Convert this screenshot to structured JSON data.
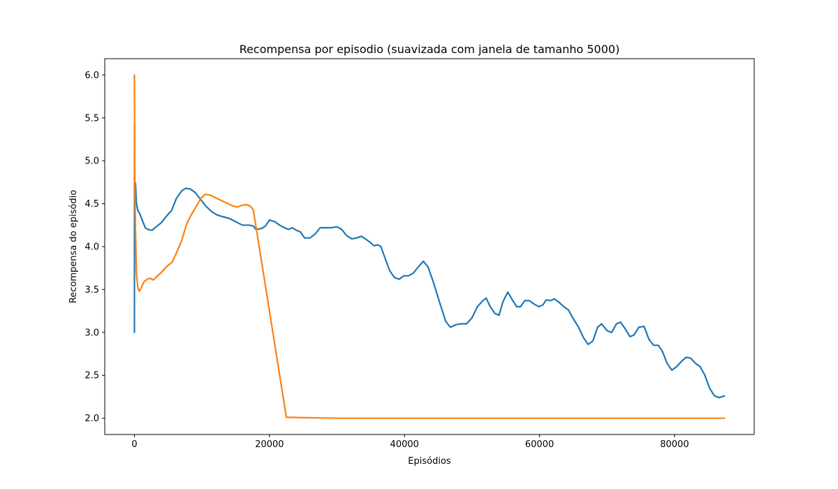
{
  "chart_data": {
    "type": "line",
    "title": "Recompensa por episodio (suavizada com janela de tamanho 5000)",
    "xlabel": "Episódios",
    "ylabel": "Recompensa do episódio",
    "xlim": [
      -4400,
      91800
    ],
    "ylim": [
      1.81,
      6.19
    ],
    "xticks": [
      0,
      20000,
      40000,
      60000,
      80000
    ],
    "yticks": [
      2.0,
      2.5,
      3.0,
      3.5,
      4.0,
      4.5,
      5.0,
      5.5,
      6.0
    ],
    "xtick_labels": [
      "0",
      "20000",
      "40000",
      "60000",
      "80000"
    ],
    "ytick_labels": [
      "2.0",
      "2.5",
      "3.0",
      "3.5",
      "4.0",
      "4.5",
      "5.0",
      "5.5",
      "6.0"
    ],
    "grid": false,
    "legend": "none",
    "series": [
      {
        "color": "#1f77b4",
        "points": [
          [
            0,
            3.0
          ],
          [
            20,
            5.42
          ],
          [
            60,
            4.4
          ],
          [
            150,
            4.74
          ],
          [
            300,
            4.5
          ],
          [
            500,
            4.42
          ],
          [
            800,
            4.38
          ],
          [
            1200,
            4.3
          ],
          [
            1600,
            4.22
          ],
          [
            2000,
            4.2
          ],
          [
            2600,
            4.19
          ],
          [
            3200,
            4.23
          ],
          [
            4000,
            4.28
          ],
          [
            4800,
            4.36
          ],
          [
            5500,
            4.42
          ],
          [
            6200,
            4.56
          ],
          [
            7000,
            4.65
          ],
          [
            7600,
            4.68
          ],
          [
            8300,
            4.67
          ],
          [
            9000,
            4.63
          ],
          [
            9800,
            4.55
          ],
          [
            10600,
            4.47
          ],
          [
            11400,
            4.41
          ],
          [
            12200,
            4.37
          ],
          [
            13000,
            4.35
          ],
          [
            14000,
            4.33
          ],
          [
            15000,
            4.29
          ],
          [
            16000,
            4.25
          ],
          [
            17000,
            4.25
          ],
          [
            17600,
            4.24
          ],
          [
            18000,
            4.2
          ],
          [
            18800,
            4.21
          ],
          [
            19400,
            4.24
          ],
          [
            20000,
            4.31
          ],
          [
            20800,
            4.29
          ],
          [
            21500,
            4.25
          ],
          [
            22200,
            4.22
          ],
          [
            22800,
            4.2
          ],
          [
            23400,
            4.22
          ],
          [
            24000,
            4.19
          ],
          [
            24600,
            4.17
          ],
          [
            25200,
            4.1
          ],
          [
            26000,
            4.1
          ],
          [
            26800,
            4.15
          ],
          [
            27500,
            4.22
          ],
          [
            28300,
            4.22
          ],
          [
            29100,
            4.22
          ],
          [
            30000,
            4.23
          ],
          [
            30700,
            4.2
          ],
          [
            31400,
            4.13
          ],
          [
            32200,
            4.09
          ],
          [
            32900,
            4.1
          ],
          [
            33600,
            4.12
          ],
          [
            34200,
            4.09
          ],
          [
            34900,
            4.05
          ],
          [
            35500,
            4.01
          ],
          [
            36000,
            4.02
          ],
          [
            36500,
            4.0
          ],
          [
            37100,
            3.87
          ],
          [
            37800,
            3.72
          ],
          [
            38500,
            3.64
          ],
          [
            39200,
            3.62
          ],
          [
            39900,
            3.66
          ],
          [
            40600,
            3.66
          ],
          [
            41300,
            3.69
          ],
          [
            42000,
            3.76
          ],
          [
            42800,
            3.83
          ],
          [
            43500,
            3.76
          ],
          [
            44300,
            3.58
          ],
          [
            45200,
            3.35
          ],
          [
            46100,
            3.13
          ],
          [
            46800,
            3.06
          ],
          [
            47600,
            3.09
          ],
          [
            48400,
            3.1
          ],
          [
            49200,
            3.1
          ],
          [
            50000,
            3.17
          ],
          [
            50800,
            3.3
          ],
          [
            51600,
            3.37
          ],
          [
            52100,
            3.4
          ],
          [
            52700,
            3.3
          ],
          [
            53400,
            3.22
          ],
          [
            54000,
            3.2
          ],
          [
            54600,
            3.36
          ],
          [
            55300,
            3.47
          ],
          [
            55900,
            3.39
          ],
          [
            56600,
            3.3
          ],
          [
            57200,
            3.3
          ],
          [
            57800,
            3.37
          ],
          [
            58500,
            3.37
          ],
          [
            59200,
            3.33
          ],
          [
            59900,
            3.3
          ],
          [
            60500,
            3.32
          ],
          [
            61000,
            3.38
          ],
          [
            61600,
            3.37
          ],
          [
            62200,
            3.39
          ],
          [
            62900,
            3.35
          ],
          [
            63600,
            3.3
          ],
          [
            64300,
            3.26
          ],
          [
            65000,
            3.16
          ],
          [
            65800,
            3.06
          ],
          [
            66500,
            2.94
          ],
          [
            67200,
            2.86
          ],
          [
            67900,
            2.9
          ],
          [
            68600,
            3.06
          ],
          [
            69200,
            3.1
          ],
          [
            70000,
            3.02
          ],
          [
            70700,
            3.0
          ],
          [
            71400,
            3.1
          ],
          [
            72000,
            3.12
          ],
          [
            72700,
            3.04
          ],
          [
            73400,
            2.95
          ],
          [
            74000,
            2.97
          ],
          [
            74700,
            3.06
          ],
          [
            75500,
            3.07
          ],
          [
            76200,
            2.92
          ],
          [
            76900,
            2.85
          ],
          [
            77600,
            2.85
          ],
          [
            78200,
            2.78
          ],
          [
            78900,
            2.64
          ],
          [
            79600,
            2.56
          ],
          [
            80300,
            2.6
          ],
          [
            81000,
            2.66
          ],
          [
            81700,
            2.71
          ],
          [
            82400,
            2.7
          ],
          [
            83100,
            2.64
          ],
          [
            83800,
            2.6
          ],
          [
            84500,
            2.5
          ],
          [
            85200,
            2.35
          ],
          [
            85900,
            2.26
          ],
          [
            86600,
            2.24
          ],
          [
            87400,
            2.26
          ]
        ]
      },
      {
        "color": "#ff7f0e",
        "points": [
          [
            0,
            6.0
          ],
          [
            50,
            4.8
          ],
          [
            150,
            4.2
          ],
          [
            300,
            3.7
          ],
          [
            500,
            3.52
          ],
          [
            700,
            3.48
          ],
          [
            1000,
            3.52
          ],
          [
            1400,
            3.59
          ],
          [
            1900,
            3.62
          ],
          [
            2300,
            3.63
          ],
          [
            2800,
            3.61
          ],
          [
            3300,
            3.65
          ],
          [
            4000,
            3.7
          ],
          [
            4800,
            3.77
          ],
          [
            5600,
            3.82
          ],
          [
            6300,
            3.94
          ],
          [
            7000,
            4.07
          ],
          [
            7700,
            4.26
          ],
          [
            8400,
            4.37
          ],
          [
            9100,
            4.46
          ],
          [
            9800,
            4.56
          ],
          [
            10500,
            4.61
          ],
          [
            11200,
            4.6
          ],
          [
            12000,
            4.57
          ],
          [
            12800,
            4.54
          ],
          [
            13600,
            4.51
          ],
          [
            14400,
            4.48
          ],
          [
            15200,
            4.46
          ],
          [
            15900,
            4.48
          ],
          [
            16600,
            4.49
          ],
          [
            17200,
            4.47
          ],
          [
            17600,
            4.43
          ],
          [
            22500,
            2.01
          ],
          [
            30000,
            2.0
          ],
          [
            40000,
            2.0
          ],
          [
            50000,
            2.0
          ],
          [
            60000,
            2.0
          ],
          [
            70000,
            2.0
          ],
          [
            80000,
            2.0
          ],
          [
            87400,
            2.0
          ]
        ]
      }
    ]
  }
}
